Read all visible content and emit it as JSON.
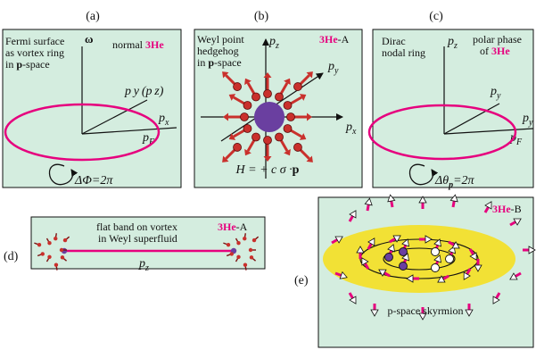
{
  "colors": {
    "panel_fill": "#d4eddf",
    "magenta": "#e6007e",
    "purple": "#6a3fa0",
    "yellow": "#f2e135",
    "arrow_red": "#c9302c",
    "dark_red": "#7a1010",
    "black": "#111111"
  },
  "panel_letters": {
    "a": "(a)",
    "b": "(b)",
    "c": "(c)",
    "d": "(d)",
    "e": "(e)"
  },
  "panel_a": {
    "desc_line1": "Fermi surface",
    "desc_line2": "as vortex ring",
    "desc_line3_pre": "in ",
    "desc_line3_bold": "p",
    "desc_line3_post": "-space",
    "omega": "ω",
    "normal_text": "normal ",
    "he3": "3He",
    "py_pz": "p y (p z)",
    "px": "p",
    "px_sub": "x",
    "pF": "p",
    "pF_sub": "F",
    "winding": "ΔΦ=2π"
  },
  "panel_b": {
    "desc_line1": "Weyl point",
    "desc_line2": "hedgehog",
    "desc_line3_pre": "in ",
    "desc_line3_bold": "p",
    "desc_line3_post": "-space",
    "he3": "3He",
    "phase_suffix": "-A",
    "pz": "p",
    "pz_sub": "z",
    "py": "p",
    "py_sub": "y",
    "px": "p",
    "px_sub": "x",
    "hamiltonian_pre": "H = + c σ ·",
    "hamiltonian_bold": "p"
  },
  "panel_c": {
    "desc_line1": "Dirac",
    "desc_line2": "nodal ring",
    "pz": "p",
    "pz_sub": "z",
    "polar_line1": "polar phase",
    "polar_line2_pre": "of ",
    "he3": "3He",
    "py": "p",
    "py_sub": "y",
    "px": "p",
    "px_sub": "y",
    "pF": "p",
    "pF_sub": "F",
    "winding_pre": "Δθ",
    "winding_sub": "p",
    "winding_post": "=2π"
  },
  "panel_d": {
    "line1": "flat band on vortex",
    "line2": "in Weyl superfluid",
    "he3": "3He",
    "phase_suffix": "-A",
    "pz": "p",
    "pz_sub": "z"
  },
  "panel_e": {
    "he3": "3He",
    "phase_suffix": "-B",
    "caption": "p-space skyrmion"
  }
}
